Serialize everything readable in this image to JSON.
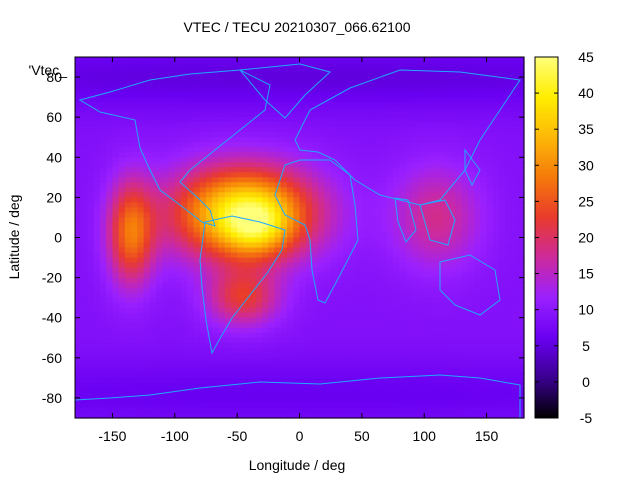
{
  "chart_data": {
    "type": "heatmap",
    "title": "VTEC / TECU 20210307_066.62100",
    "xlabel": "Longitude / deg",
    "ylabel": "Latitude / deg",
    "legend_label": "'Vtec_",
    "xlim": [
      -180,
      180
    ],
    "ylim": [
      -90,
      90
    ],
    "xticks": [
      -150,
      -100,
      -50,
      0,
      50,
      100,
      150
    ],
    "yticks": [
      -80,
      -60,
      -40,
      -20,
      0,
      20,
      40,
      60,
      80
    ],
    "colorbar": {
      "range": [
        -5,
        45
      ],
      "ticks": [
        -5,
        0,
        5,
        10,
        15,
        20,
        25,
        30,
        35,
        40,
        45
      ],
      "palette": [
        "#000000",
        "#3a008f",
        "#6a00f2",
        "#9a20ff",
        "#cd2a9c",
        "#e93a2c",
        "#f57a0a",
        "#fdb808",
        "#ffee00",
        "#ffff7a"
      ]
    },
    "grid": false,
    "field": {
      "background_tecu": 9,
      "anomalies": [
        {
          "name": "equatorial-anomaly-americas-atlantic",
          "lon": -45,
          "lat": 12,
          "sigma_lon": 40,
          "sigma_lat": 16,
          "amplitude_tecu": 31
        },
        {
          "name": "peak-south-america",
          "lon": -35,
          "lat": 5,
          "sigma_lon": 18,
          "sigma_lat": 10,
          "amplitude_tecu": 10
        },
        {
          "name": "southern-crest-south-america",
          "lon": -45,
          "lat": -30,
          "sigma_lon": 20,
          "sigma_lat": 10,
          "amplitude_tecu": 13
        },
        {
          "name": "eastern-pacific-crest",
          "lon": -135,
          "lat": 2,
          "sigma_lon": 13,
          "sigma_lat": 18,
          "amplitude_tecu": 18
        },
        {
          "name": "indian-ocean-asia-region",
          "lon": 110,
          "lat": 10,
          "sigma_lon": 25,
          "sigma_lat": 18,
          "amplitude_tecu": 9
        },
        {
          "name": "high-latitude-depletion-north",
          "lon": 0,
          "lat": 80,
          "sigma_lon": 400,
          "sigma_lat": 12,
          "amplitude_tecu": -4
        },
        {
          "name": "high-latitude-depletion-south",
          "lon": 0,
          "lat": -78,
          "sigma_lon": 400,
          "sigma_lat": 12,
          "amplitude_tecu": -3
        }
      ]
    }
  }
}
